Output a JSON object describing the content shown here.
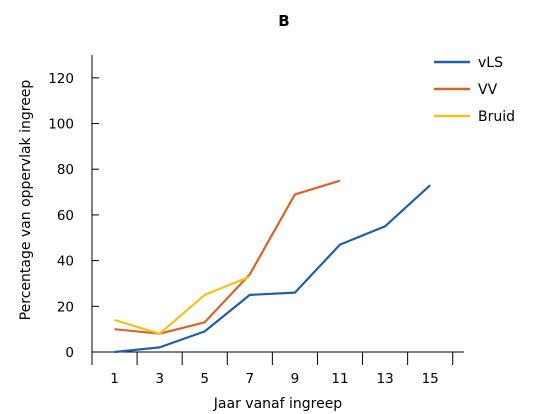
{
  "chart_data": {
    "type": "line",
    "title": "B",
    "xlabel": "Jaar vanaf ingreep",
    "ylabel": "Percentage van oppervlak ingreep",
    "x_ticks": [
      1,
      3,
      5,
      7,
      9,
      11,
      13,
      15
    ],
    "y_ticks": [
      0,
      20,
      40,
      60,
      80,
      100,
      120
    ],
    "xlim": [
      0,
      16.5
    ],
    "ylim": [
      0,
      130
    ],
    "grid": false,
    "legend_position": "top-right",
    "series": [
      {
        "name": "vLS",
        "color": "#1f5fa8",
        "x": [
          1,
          3,
          5,
          7,
          9,
          11,
          13,
          15
        ],
        "values": [
          0,
          2,
          9,
          25,
          26,
          47,
          55,
          73
        ]
      },
      {
        "name": "VV",
        "color": "#d9632a",
        "x": [
          1,
          3,
          5,
          7,
          9,
          11
        ],
        "values": [
          10,
          8,
          13,
          34,
          69,
          75
        ]
      },
      {
        "name": "Bruid",
        "color": "#f2c21b",
        "x": [
          1,
          3,
          5,
          7
        ],
        "values": [
          14,
          8,
          25,
          33
        ]
      }
    ]
  }
}
